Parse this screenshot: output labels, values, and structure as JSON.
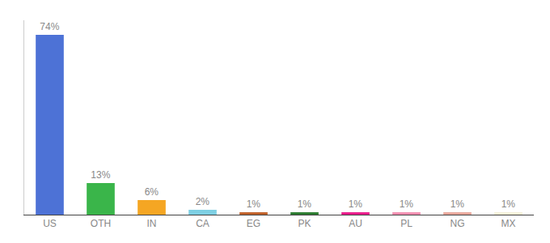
{
  "chart_data": {
    "type": "bar",
    "categories": [
      "US",
      "OTH",
      "IN",
      "CA",
      "EG",
      "PK",
      "AU",
      "PL",
      "NG",
      "MX"
    ],
    "values": [
      74,
      13,
      6,
      2,
      1,
      1,
      1,
      1,
      1,
      1
    ],
    "value_labels": [
      "74%",
      "13%",
      "6%",
      "2%",
      "1%",
      "1%",
      "1%",
      "1%",
      "1%",
      "1%"
    ],
    "colors": [
      "#4d72d6",
      "#3ab54a",
      "#f5a623",
      "#7ecfe3",
      "#c0622b",
      "#2e7d32",
      "#e91e8c",
      "#f48fb1",
      "#e8a89c",
      "#f5f0d8"
    ],
    "data_labels": true,
    "ylim": [
      0,
      80
    ],
    "grid": false,
    "tick_labels": "x"
  }
}
